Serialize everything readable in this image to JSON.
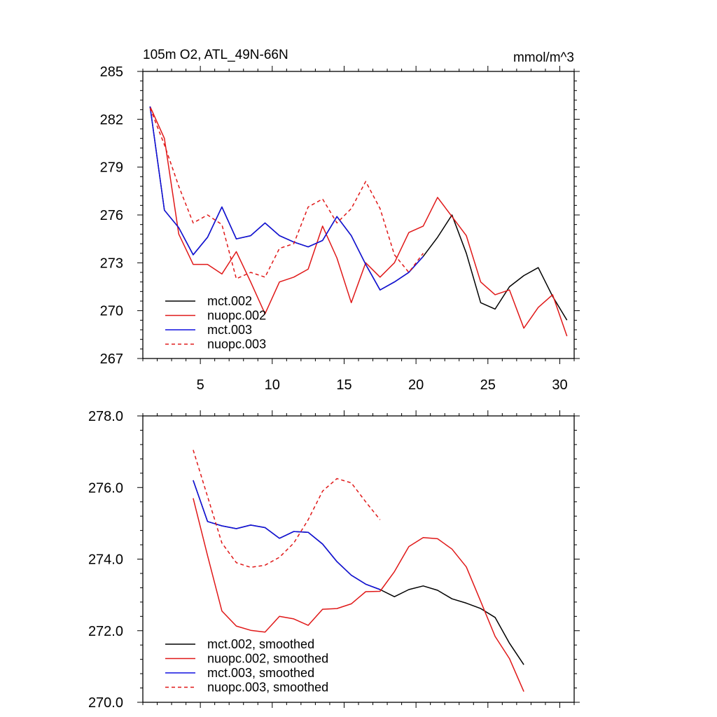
{
  "chart_data": [
    {
      "type": "line",
      "title": "105m O2, ATL_49N-66N",
      "units": "mmol/m^3",
      "xlim": [
        1,
        31
      ],
      "ylim": [
        267,
        285
      ],
      "xticks": [
        5,
        10,
        15,
        20,
        25,
        30
      ],
      "xtick_labels": [
        "5",
        "10",
        "15",
        "20",
        "25",
        "30"
      ],
      "yticks": [
        267,
        270,
        273,
        276,
        279,
        282,
        285
      ],
      "ytick_labels": [
        "267",
        "270",
        "273",
        "276",
        "279",
        "282",
        "285"
      ],
      "legend_position": "bottom-left",
      "series": [
        {
          "name": "mct.002",
          "color": "#000000",
          "dash": "solid",
          "x": [
            1.5,
            2.5,
            3.5,
            4.5,
            5.5,
            6.5,
            7.5,
            8.5,
            9.5,
            10.5,
            11.5,
            12.5,
            13.5,
            14.5,
            15.5,
            16.5,
            17.5,
            18.5,
            19.5,
            20.5,
            21.5,
            22.5,
            23.5,
            24.5,
            25.5,
            26.5,
            27.5,
            28.5,
            29.5,
            30.5
          ],
          "values": [
            282.8,
            276.3,
            275.2,
            273.5,
            274.6,
            276.5,
            274.5,
            274.7,
            275.5,
            274.7,
            274.3,
            274.0,
            274.4,
            275.9,
            274.7,
            272.9,
            271.3,
            271.8,
            272.4,
            273.4,
            274.6,
            276.0,
            273.6,
            270.5,
            270.1,
            271.5,
            272.2,
            272.7,
            270.9,
            269.4
          ]
        },
        {
          "name": "nuopc.002",
          "color": "#e01818",
          "dash": "solid",
          "x": [
            1.5,
            2.5,
            3.5,
            4.5,
            5.5,
            6.5,
            7.5,
            8.5,
            9.5,
            10.5,
            11.5,
            12.5,
            13.5,
            14.5,
            15.5,
            16.5,
            17.5,
            18.5,
            19.5,
            20.5,
            21.5,
            22.5,
            23.5,
            24.5,
            25.5,
            26.5,
            27.5,
            28.5,
            29.5,
            30.5
          ],
          "values": [
            282.8,
            280.8,
            274.8,
            272.9,
            272.9,
            272.3,
            273.7,
            271.8,
            269.8,
            271.8,
            272.1,
            272.6,
            275.3,
            273.3,
            270.5,
            273.0,
            272.1,
            273.0,
            274.9,
            275.3,
            277.1,
            275.9,
            274.7,
            271.8,
            271.0,
            271.3,
            268.9,
            270.2,
            271.0,
            268.4
          ]
        },
        {
          "name": "mct.003",
          "color": "#1010e0",
          "dash": "solid",
          "x": [
            1.5,
            2.5,
            3.5,
            4.5,
            5.5,
            6.5,
            7.5,
            8.5,
            9.5,
            10.5,
            11.5,
            12.5,
            13.5,
            14.5,
            15.5,
            16.5,
            17.5,
            18.5,
            19.5,
            20.5
          ],
          "values": [
            282.8,
            276.3,
            275.2,
            273.5,
            274.6,
            276.5,
            274.5,
            274.7,
            275.5,
            274.7,
            274.3,
            274.0,
            274.4,
            275.9,
            274.7,
            272.9,
            271.3,
            271.8,
            272.4,
            273.4
          ]
        },
        {
          "name": "nuopc.003",
          "color": "#e01818",
          "dash": "dashed",
          "x": [
            1.5,
            2.5,
            3.5,
            4.5,
            5.5,
            6.5,
            7.5,
            8.5,
            9.5,
            10.5,
            11.5,
            12.5,
            13.5,
            14.5,
            15.5,
            16.5,
            17.5,
            18.5,
            19.5,
            20.5
          ],
          "values": [
            282.7,
            280.4,
            277.8,
            275.5,
            276.0,
            275.4,
            272.0,
            272.4,
            272.1,
            273.9,
            274.2,
            276.5,
            277.0,
            275.5,
            276.4,
            278.1,
            276.4,
            273.5,
            272.4,
            273.6
          ]
        }
      ]
    },
    {
      "type": "line",
      "title": "",
      "xlim": [
        1,
        31
      ],
      "ylim": [
        270,
        278
      ],
      "xticks": [
        5,
        10,
        15,
        20,
        25,
        30
      ],
      "yticks": [
        270,
        272,
        274,
        276,
        278
      ],
      "ytick_labels": [
        "270.0",
        "272.0",
        "274.0",
        "276.0",
        "278.0"
      ],
      "legend_position": "bottom-left",
      "series": [
        {
          "name": "mct.002, smoothed",
          "color": "#000000",
          "dash": "solid",
          "x": [
            4.5,
            5.5,
            6.5,
            7.5,
            8.5,
            9.5,
            10.5,
            11.5,
            12.5,
            13.5,
            14.5,
            15.5,
            16.5,
            17.5,
            18.5,
            19.5,
            20.5,
            21.5,
            22.5,
            23.5,
            24.5,
            25.5,
            26.5,
            27.5
          ],
          "values": [
            276.2,
            275.05,
            274.93,
            274.85,
            274.95,
            274.88,
            274.58,
            274.77,
            274.75,
            274.42,
            273.93,
            273.55,
            273.3,
            273.15,
            272.95,
            273.15,
            273.25,
            273.13,
            272.89,
            272.77,
            272.62,
            272.37,
            271.65,
            271.05
          ]
        },
        {
          "name": "nuopc.002, smoothed",
          "color": "#e01818",
          "dash": "solid",
          "x": [
            4.5,
            5.5,
            6.5,
            7.5,
            8.5,
            9.5,
            10.5,
            11.5,
            12.5,
            13.5,
            14.5,
            15.5,
            16.5,
            17.5,
            18.5,
            19.5,
            20.5,
            21.5,
            22.5,
            23.5,
            24.5,
            25.5,
            26.5,
            27.5
          ],
          "values": [
            275.7,
            274.1,
            272.55,
            272.13,
            272.01,
            271.96,
            272.4,
            272.33,
            272.15,
            272.6,
            272.62,
            272.75,
            273.09,
            273.1,
            273.65,
            274.35,
            274.6,
            274.57,
            274.28,
            273.78,
            272.82,
            271.84,
            271.22,
            270.3
          ]
        },
        {
          "name": "mct.003, smoothed",
          "color": "#1010e0",
          "dash": "solid",
          "x": [
            4.5,
            5.5,
            6.5,
            7.5,
            8.5,
            9.5,
            10.5,
            11.5,
            12.5,
            13.5,
            14.5,
            15.5,
            16.5,
            17.5
          ],
          "values": [
            276.2,
            275.05,
            274.93,
            274.85,
            274.95,
            274.88,
            274.58,
            274.77,
            274.75,
            274.42,
            273.93,
            273.55,
            273.3,
            273.15
          ]
        },
        {
          "name": "nuopc.003, smoothed",
          "color": "#e01818",
          "dash": "dashed",
          "x": [
            4.5,
            5.5,
            6.5,
            7.5,
            8.5,
            9.5,
            10.5,
            11.5,
            12.5,
            13.5,
            14.5,
            15.5,
            16.5,
            17.5
          ],
          "values": [
            277.05,
            275.75,
            274.45,
            273.9,
            273.77,
            273.83,
            274.05,
            274.45,
            275.1,
            275.9,
            276.25,
            276.13,
            275.6,
            275.1
          ]
        }
      ]
    }
  ]
}
